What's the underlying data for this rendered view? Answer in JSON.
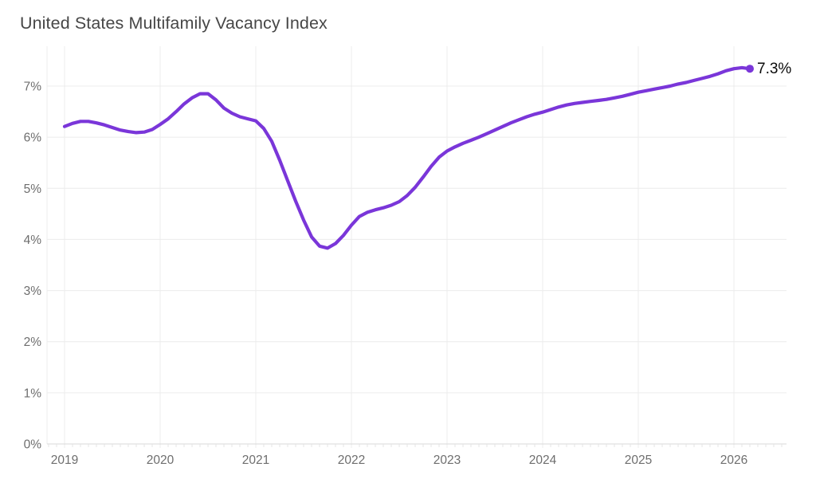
{
  "title": "United States Multifamily Vacancy Index",
  "colors": {
    "background": "#ffffff",
    "title": "#474747",
    "axis_label": "#6e6e6e",
    "grid": "#ececec",
    "baseline": "#d9d9d9",
    "minor_tick": "#e4e4e4",
    "line": "#7a36d9",
    "dot": "#7a36d9",
    "end_label": "#0a0a0a"
  },
  "chart_data": {
    "type": "line",
    "title": "United States Multifamily Vacancy Index",
    "series_name": "Multifamily vacancy index",
    "unit": "%",
    "frequency": "monthly",
    "start": "2019-01",
    "end": "2026-03",
    "x_tick_labels": [
      "2019",
      "2020",
      "2021",
      "2022",
      "2023",
      "2024",
      "2025",
      "2026"
    ],
    "y_tick_labels": [
      "0%",
      "1%",
      "2%",
      "3%",
      "4%",
      "5%",
      "6%",
      "7%"
    ],
    "y_ticks": [
      0,
      1,
      2,
      3,
      4,
      5,
      6,
      7
    ],
    "ylim": [
      0,
      7.78
    ],
    "grid": true,
    "legend_position": "none",
    "values": [
      6.21,
      6.27,
      6.31,
      6.31,
      6.28,
      6.24,
      6.19,
      6.14,
      6.11,
      6.09,
      6.1,
      6.15,
      6.25,
      6.36,
      6.5,
      6.65,
      6.77,
      6.85,
      6.85,
      6.73,
      6.57,
      6.47,
      6.4,
      6.36,
      6.32,
      6.17,
      5.92,
      5.55,
      5.15,
      4.75,
      4.38,
      4.05,
      3.87,
      3.83,
      3.92,
      4.08,
      4.28,
      4.45,
      4.53,
      4.58,
      4.62,
      4.67,
      4.74,
      4.86,
      5.02,
      5.22,
      5.43,
      5.61,
      5.73,
      5.81,
      5.88,
      5.94,
      6.0,
      6.07,
      6.14,
      6.21,
      6.28,
      6.34,
      6.4,
      6.45,
      6.49,
      6.54,
      6.59,
      6.63,
      6.66,
      6.68,
      6.7,
      6.72,
      6.74,
      6.77,
      6.8,
      6.84,
      6.88,
      6.91,
      6.94,
      6.97,
      7.0,
      7.04,
      7.07,
      7.11,
      7.15,
      7.19,
      7.24,
      7.3,
      7.34,
      7.36,
      7.34
    ],
    "last_point": {
      "date": "2026-03",
      "value": 7.34,
      "label": "7.3%"
    },
    "annotations": [
      {
        "text": "7.3%",
        "attached_to": "last_point"
      }
    ]
  }
}
